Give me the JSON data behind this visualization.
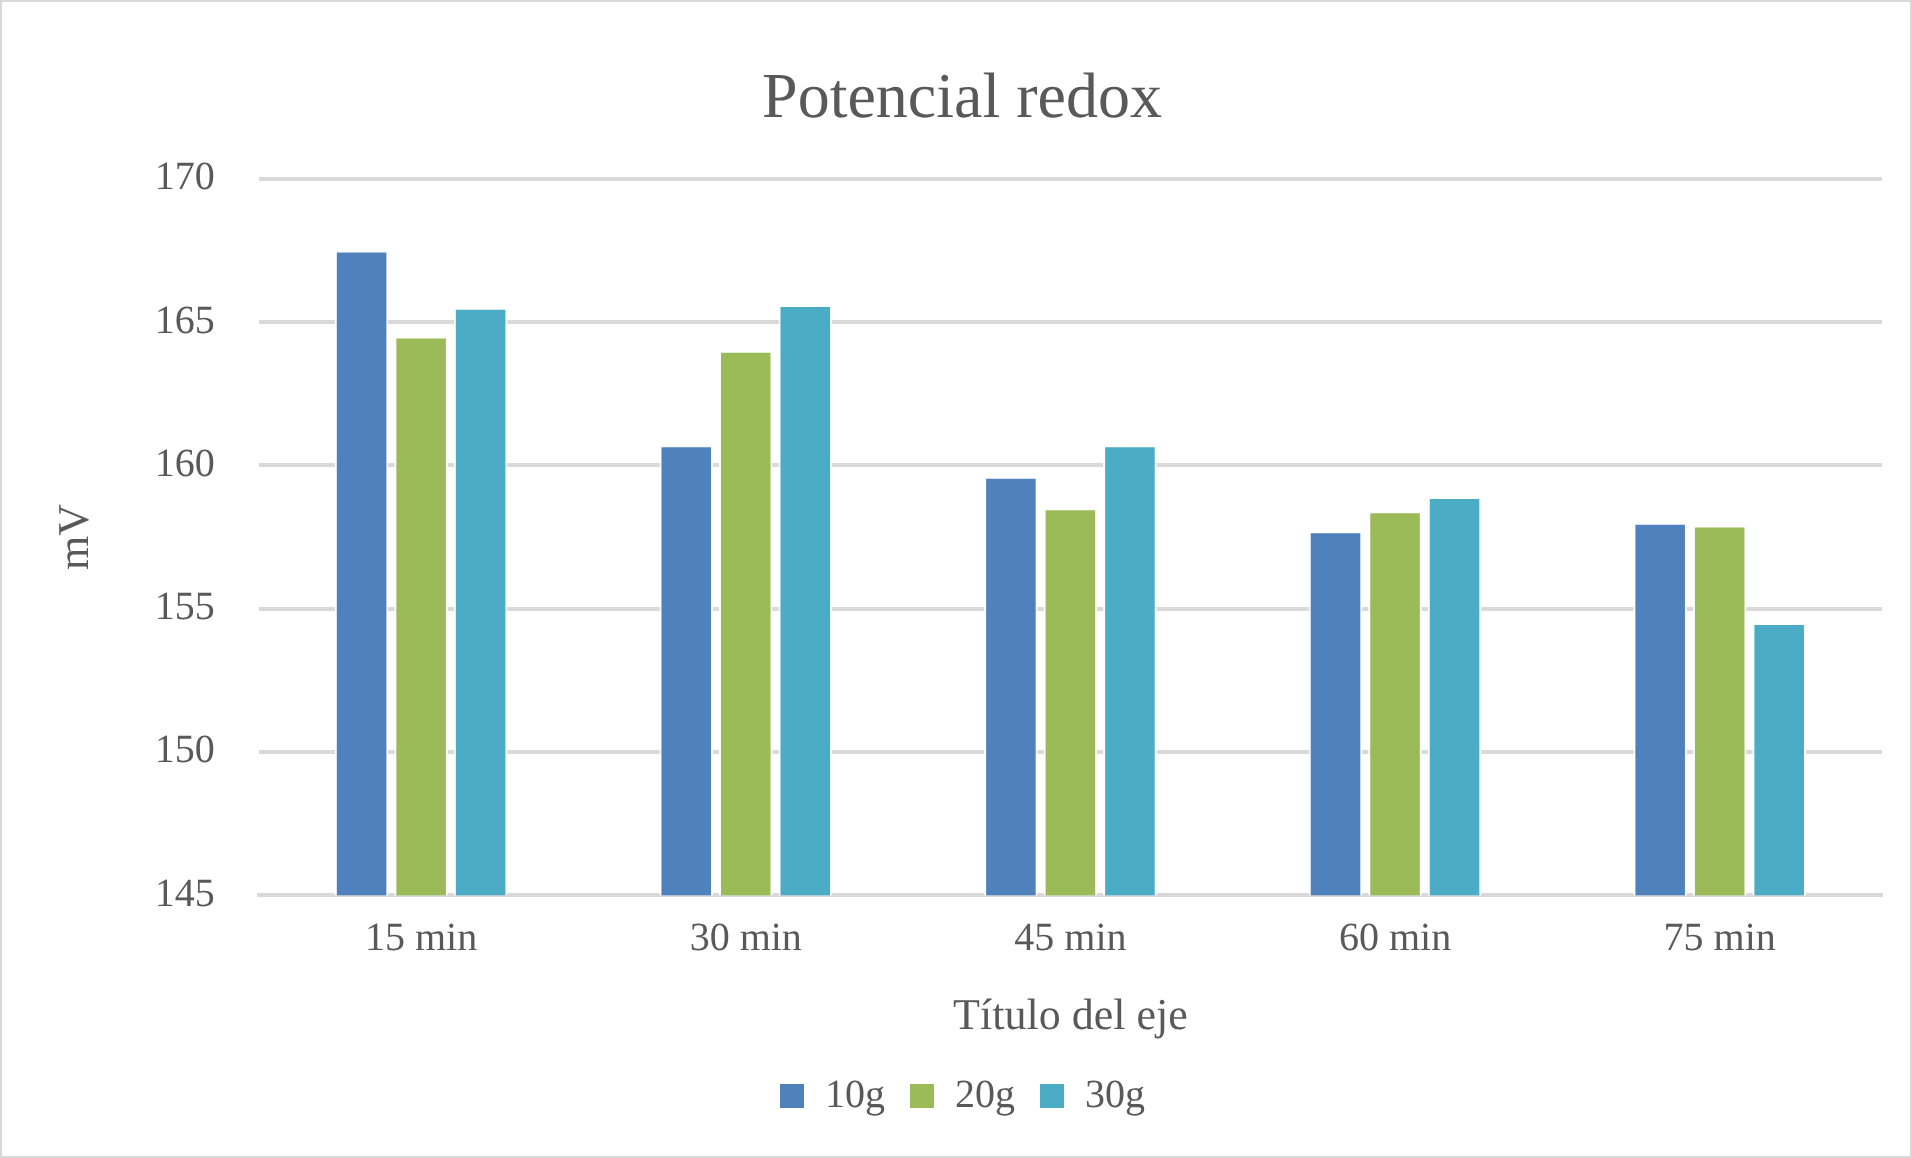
{
  "chart_data": {
    "type": "bar",
    "title": "Potencial redox",
    "xlabel": "Título del eje",
    "ylabel": "mV",
    "categories": [
      "15 min",
      "30 min",
      "45 min",
      "60 min",
      "75 min"
    ],
    "series": [
      {
        "name": "10g",
        "color": "#4f81bd",
        "values": [
          167.5,
          160.7,
          159.6,
          157.7,
          158.0
        ]
      },
      {
        "name": "20g",
        "color": "#9bbb59",
        "values": [
          164.5,
          164.0,
          158.5,
          158.4,
          157.9
        ]
      },
      {
        "name": "30g",
        "color": "#4bacc6",
        "values": [
          165.5,
          165.6,
          160.7,
          158.9,
          154.5
        ]
      }
    ],
    "ylim": [
      145,
      170
    ],
    "yticks": [
      145,
      150,
      155,
      160,
      165,
      170
    ],
    "grid": "y",
    "legend": "bottom"
  }
}
